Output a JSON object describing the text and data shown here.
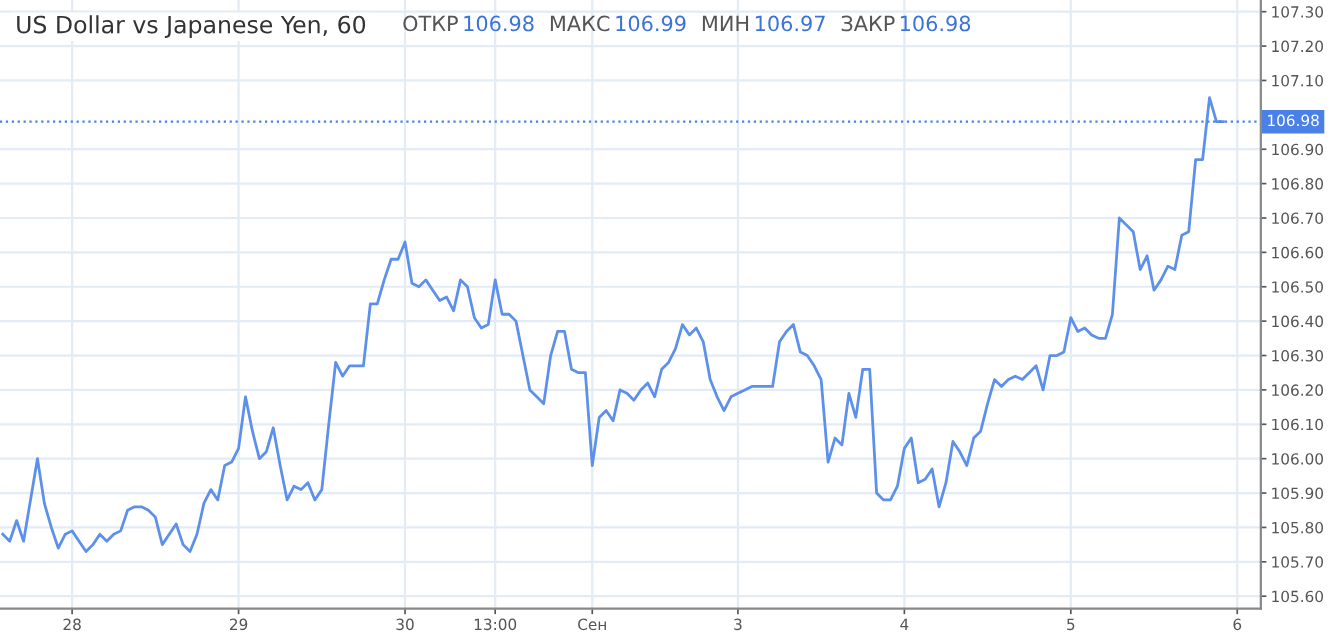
{
  "chart_data": {
    "type": "line",
    "title": "US Dollar vs Japanese Yen, 60",
    "annotations": [
      "ОТКР",
      "106.98",
      "МАКС",
      "106.99",
      "МИН",
      "106.97",
      "ЗАКР",
      "106.98"
    ],
    "categories": [
      null,
      null,
      null,
      null,
      null,
      null,
      null,
      null,
      null,
      null,
      "28",
      null,
      null,
      null,
      null,
      null,
      null,
      null,
      null,
      null,
      null,
      null,
      null,
      null,
      null,
      null,
      null,
      null,
      null,
      null,
      null,
      null,
      null,
      null,
      "29",
      null,
      null,
      null,
      null,
      null,
      null,
      null,
      null,
      null,
      null,
      null,
      null,
      null,
      null,
      null,
      null,
      null,
      null,
      null,
      null,
      null,
      null,
      null,
      "30",
      null,
      null,
      null,
      null,
      null,
      null,
      null,
      null,
      null,
      null,
      null,
      null,
      "13:00",
      null,
      null,
      null,
      null,
      null,
      null,
      null,
      null,
      null,
      null,
      null,
      null,
      null,
      "Сен",
      null,
      null,
      null,
      null,
      null,
      null,
      null,
      null,
      null,
      null,
      null,
      null,
      null,
      null,
      null,
      null,
      null,
      null,
      null,
      null,
      "3",
      null,
      null,
      null,
      null,
      null,
      null,
      null,
      null,
      null,
      null,
      null,
      null,
      null,
      null,
      null,
      null,
      null,
      null,
      null,
      null,
      null,
      null,
      null,
      "4",
      null,
      null,
      null,
      null,
      null,
      null,
      null,
      null,
      null,
      null,
      null,
      null,
      null,
      null,
      null,
      null,
      null,
      null,
      null,
      null,
      null,
      null,
      null,
      "5",
      null,
      null,
      null,
      null,
      null,
      null,
      null,
      null,
      null,
      null,
      null,
      null,
      null,
      null,
      null,
      null,
      null,
      null,
      null,
      null,
      null,
      null,
      null,
      "6"
    ],
    "series": [
      {
        "color": "#5d90ea",
        "values": [
          105.78,
          105.76,
          105.82,
          105.76,
          105.88,
          106.0,
          105.87,
          105.8,
          105.74,
          105.78,
          105.79,
          105.76,
          105.73,
          105.75,
          105.78,
          105.76,
          105.78,
          105.79,
          105.85,
          105.86,
          105.86,
          105.85,
          105.83,
          105.75,
          105.78,
          105.81,
          105.75,
          105.73,
          105.78,
          105.87,
          105.91,
          105.88,
          105.98,
          105.99,
          106.03,
          106.18,
          106.08,
          106.0,
          106.02,
          106.09,
          105.98,
          105.88,
          105.92,
          105.91,
          105.93,
          105.88,
          105.91,
          106.1,
          106.28,
          106.24,
          106.27,
          106.27,
          106.27,
          106.45,
          106.45,
          106.52,
          106.58,
          106.58,
          106.63,
          106.51,
          106.5,
          106.52,
          106.49,
          106.46,
          106.47,
          106.43,
          106.52,
          106.5,
          106.41,
          106.38,
          106.39,
          106.52,
          106.42,
          106.42,
          106.4,
          106.3,
          106.2,
          106.18,
          106.16,
          106.3,
          106.37,
          106.37,
          106.26,
          106.25,
          106.25,
          105.98,
          106.12,
          106.14,
          106.11,
          106.2,
          106.19,
          106.17,
          106.2,
          106.22,
          106.18,
          106.26,
          106.28,
          106.32,
          106.39,
          106.36,
          106.38,
          106.34,
          106.23,
          106.18,
          106.14,
          106.18,
          106.19,
          106.2,
          106.21,
          106.21,
          106.21,
          106.21,
          106.34,
          106.37,
          106.39,
          106.31,
          106.3,
          106.27,
          106.23,
          105.99,
          106.06,
          106.04,
          106.19,
          106.12,
          106.26,
          106.26,
          105.9,
          105.88,
          105.88,
          105.92,
          106.03,
          106.06,
          105.93,
          105.94,
          105.97,
          105.86,
          105.93,
          106.05,
          106.02,
          105.98,
          106.06,
          106.08,
          106.16,
          106.23,
          106.21,
          106.23,
          106.24,
          106.23,
          106.25,
          106.27,
          106.2,
          106.3,
          106.3,
          106.31,
          106.41,
          106.37,
          106.38,
          106.36,
          106.35,
          106.35,
          106.42,
          106.7,
          106.68,
          106.66,
          106.55,
          106.59,
          106.49,
          106.52,
          106.56,
          106.55,
          106.65,
          106.66,
          106.87,
          106.87,
          107.05,
          106.98,
          106.98,
          null,
          null
        ]
      }
    ],
    "ylim": [
      105.564,
      107.334
    ],
    "yticks": [
      {
        "value": 105.6,
        "label": "105.60"
      },
      {
        "value": 105.7,
        "label": "105.70"
      },
      {
        "value": 105.8,
        "label": "105.80"
      },
      {
        "value": 105.9,
        "label": "105.90"
      },
      {
        "value": 106.0,
        "label": "106.00"
      },
      {
        "value": 106.1,
        "label": "106.10"
      },
      {
        "value": 106.2,
        "label": "106.20"
      },
      {
        "value": 106.3,
        "label": "106.30"
      },
      {
        "value": 106.4,
        "label": "106.40"
      },
      {
        "value": 106.5,
        "label": "106.50"
      },
      {
        "value": 106.6,
        "label": "106.60"
      },
      {
        "value": 106.7,
        "label": "106.70"
      },
      {
        "value": 106.8,
        "label": "106.80"
      },
      {
        "value": 106.9,
        "label": "106.90"
      },
      {
        "value": 107.1,
        "label": "107.10"
      },
      {
        "value": 107.2,
        "label": "107.20"
      },
      {
        "value": 107.3,
        "label": "107.30"
      }
    ],
    "ref_lines": [
      {
        "axis": "y",
        "value": 106.98,
        "label": "106.98",
        "color": "#4a80e8",
        "line_style": "dotted"
      }
    ],
    "grid": true
  }
}
